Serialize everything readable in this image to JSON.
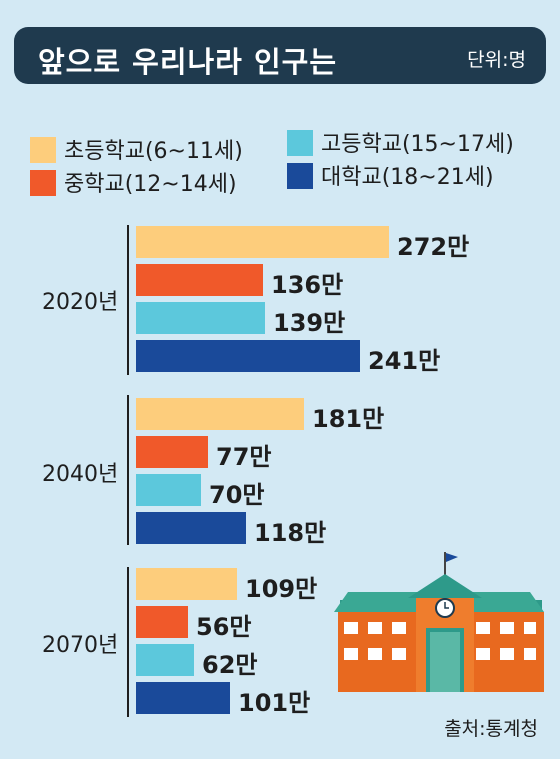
{
  "title": "앞으로 우리나라 인구는",
  "unit": "단위:명",
  "legend": [
    {
      "label": "초등학교(6~11세)",
      "color": "#fdcd7c"
    },
    {
      "label": "중학교(12~14세)",
      "color": "#f0592a"
    },
    {
      "label": "고등학교(15~17세)",
      "color": "#5cc8dc"
    },
    {
      "label": "대학교(18~21세)",
      "color": "#1a4a9a"
    }
  ],
  "source": "출처:통계청",
  "chart_data": {
    "type": "bar",
    "orientation": "horizontal",
    "categories": [
      "2020년",
      "2040년",
      "2070년"
    ],
    "series": [
      {
        "name": "초등학교(6~11세)",
        "values": [
          272,
          181,
          109
        ],
        "labels": [
          "272만",
          "181만",
          "109만"
        ],
        "color": "#fdcd7c"
      },
      {
        "name": "중학교(12~14세)",
        "values": [
          136,
          77,
          56
        ],
        "labels": [
          "136만",
          "77만",
          "56만"
        ],
        "color": "#f0592a"
      },
      {
        "name": "고등학교(15~17세)",
        "values": [
          139,
          70,
          62
        ],
        "labels": [
          "139만",
          "70만",
          "62만"
        ],
        "color": "#5cc8dc"
      },
      {
        "name": "대학교(18~21세)",
        "values": [
          241,
          118,
          101
        ],
        "labels": [
          "241만",
          "118만",
          "101만"
        ],
        "color": "#1a4a9a"
      }
    ],
    "value_unit": "만",
    "legend_position": "top"
  }
}
